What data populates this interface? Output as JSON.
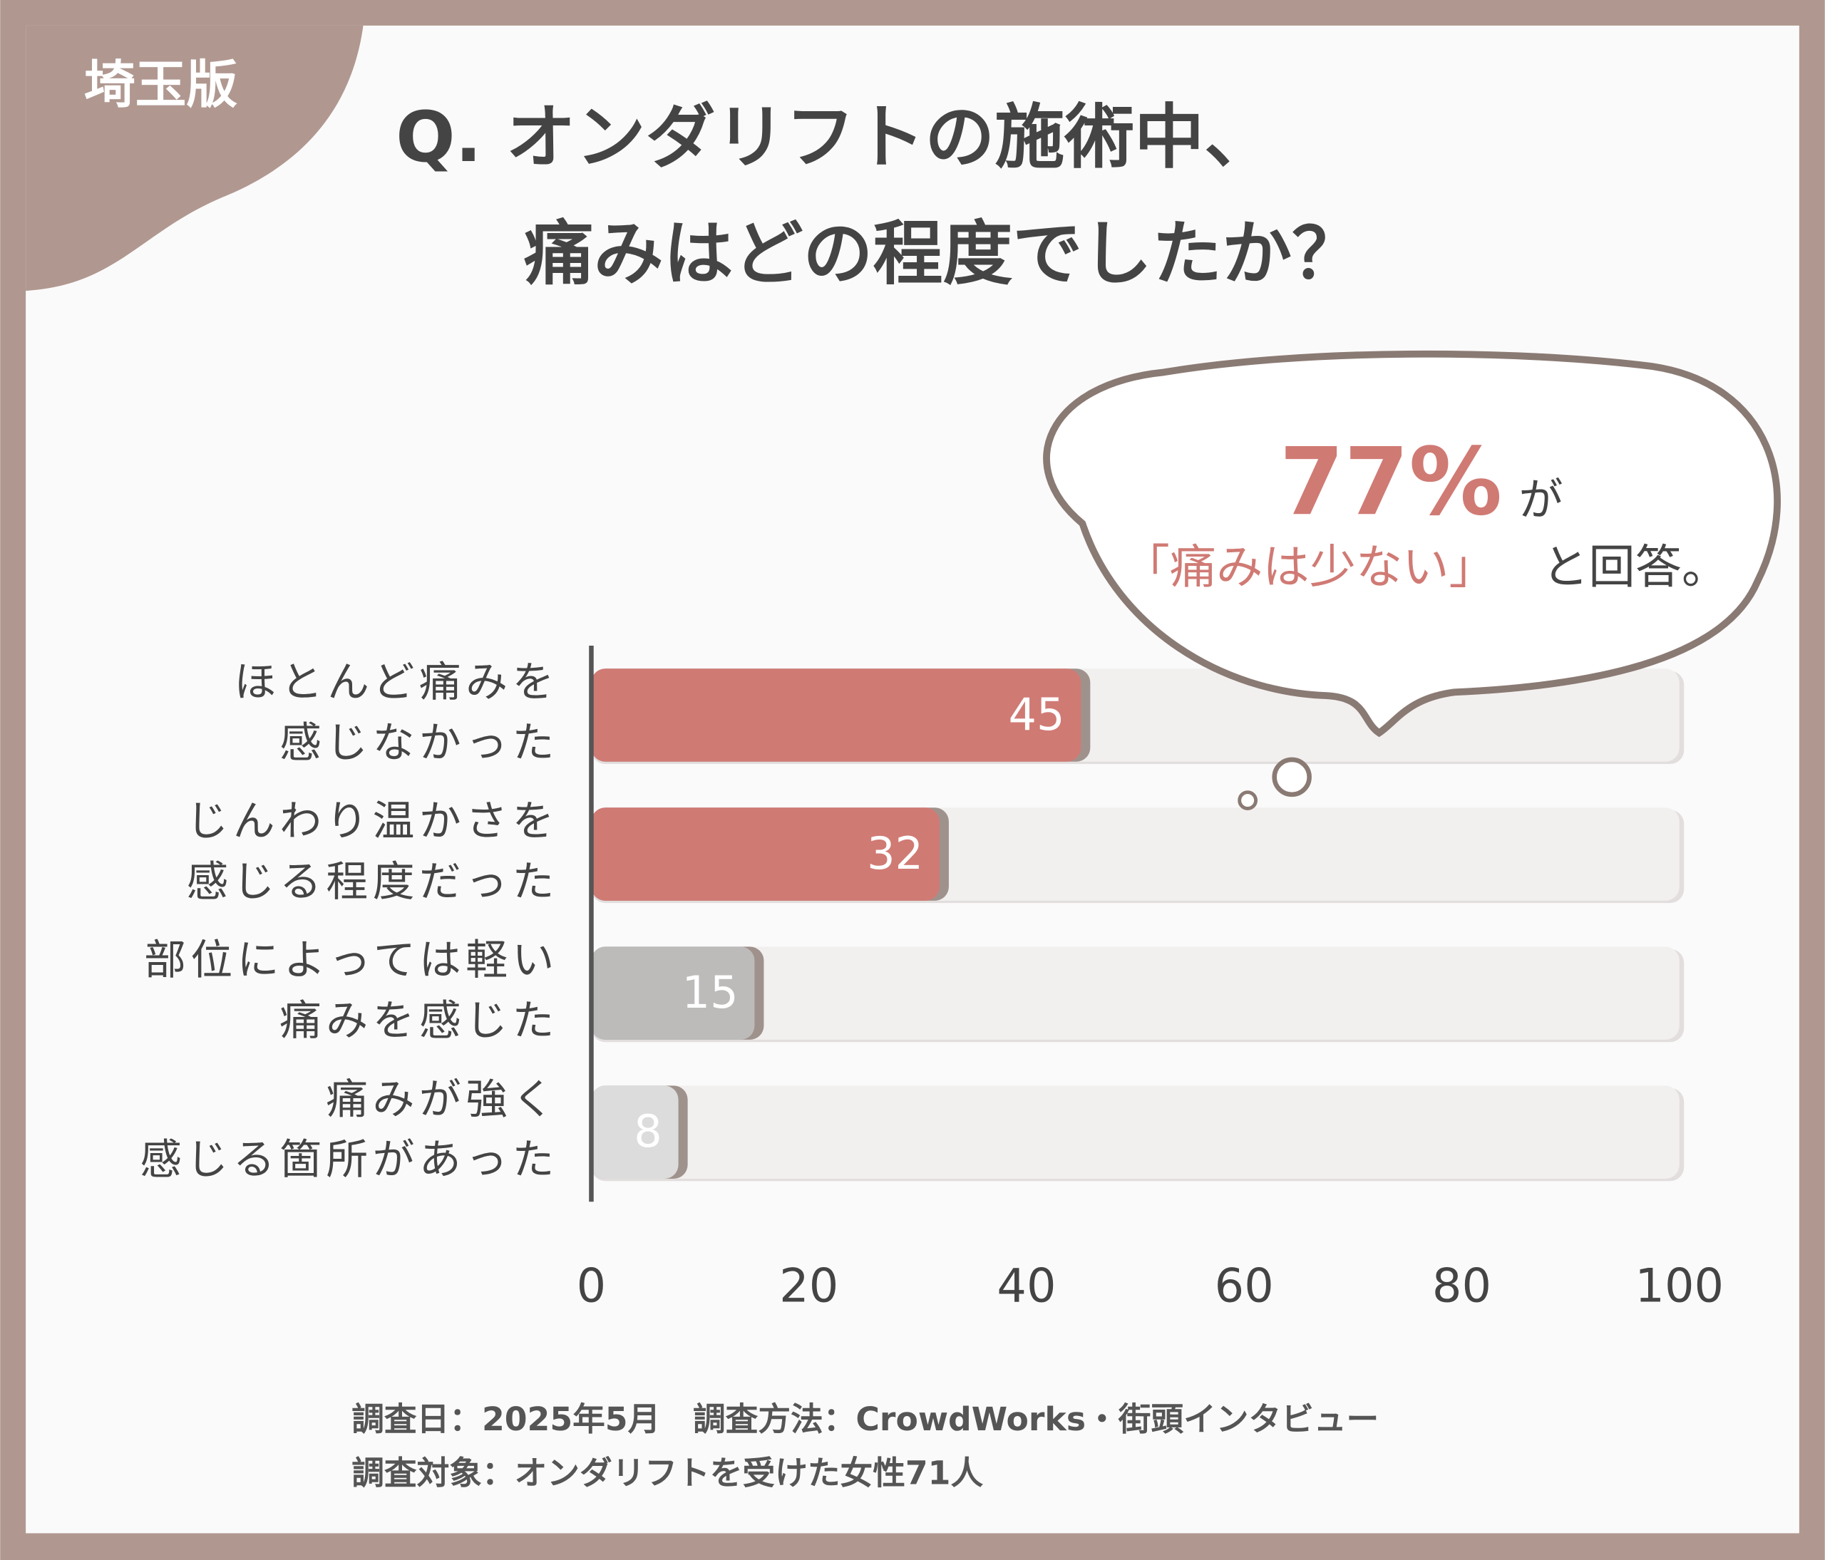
{
  "badge": "埼玉版",
  "chart_data": {
    "type": "bar",
    "orientation": "horizontal",
    "title": "Q. オンダリフトの施術中、\n痛みはどの程度でしたか？",
    "categories": [
      "ほとんど痛みを\n感じなかった",
      "じんわり温かさを\n感じる程度だった",
      "部位によっては軽い\n痛みを感じた",
      "痛みが強く\n感じる箇所があった"
    ],
    "values": [
      45,
      32,
      15,
      8
    ],
    "colors": [
      "#d07a74",
      "#d07a74",
      "#bdbbba",
      "#dcdcdc"
    ],
    "xlim": [
      0,
      100
    ],
    "xticks": [
      0,
      20,
      40,
      60,
      80,
      100
    ],
    "annotation": {
      "highlight": "77%",
      "highlight_suffix": "が",
      "quote": "「痛みは少ない」",
      "quote_suffix": "と回答。"
    }
  },
  "footnote": [
    "調査日：2025年5月　調査方法：CrowdWorks・街頭インタビュー",
    "調査対象：オンダリフトを受けた女性71人"
  ]
}
